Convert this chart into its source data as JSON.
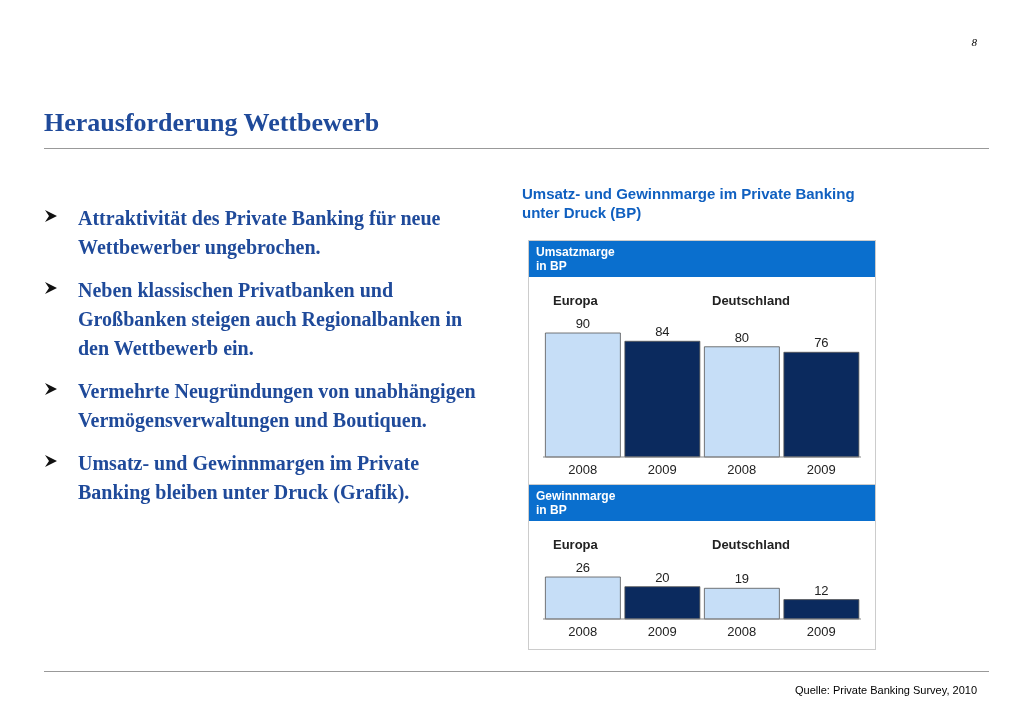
{
  "chart_data": [
    {
      "type": "other",
      "title": "Herausforderung Wettbewerb",
      "annotations": [
        "Attraktivität des Private Banking für neue Wettbewerber ungebrochen.",
        "Neben klassischen Privatbanken und Großbanken steigen auch Regionalbanken in den Wettbewerb ein.",
        "Vermehrte Neugründungen von unabhängigen Vermögensverwaltungen und Boutiquen.",
        "Umsatz- und Gewinnmargen im Private Banking bleiben unter Druck (Grafik).",
        "Umsatz- und Gewinnmarge im Private Banking unter Druck (BP)",
        "Quelle: Private Banking Survey, 2010",
        "8"
      ]
    },
    {
      "type": "bar",
      "title": "Umsatzmarge",
      "subtitle": "in BP",
      "categories": [
        "2008",
        "2009",
        "2008",
        "2009"
      ],
      "values": [
        90,
        84,
        80,
        76
      ],
      "colors": [
        "#c6def7",
        "#0b2a5e",
        "#c6def7",
        "#0b2a5e"
      ],
      "data_labels": true,
      "annotations": [
        "Europa",
        "Deutschland"
      ]
    },
    {
      "type": "bar",
      "title": "Gewinnmarge",
      "subtitle": "in BP",
      "categories": [
        "2008",
        "2009",
        "2008",
        "2009"
      ],
      "values": [
        26,
        20,
        19,
        12
      ],
      "colors": [
        "#c6def7",
        "#0b2a5e",
        "#c6def7",
        "#0b2a5e"
      ],
      "data_labels": true,
      "annotations": [
        "Europa",
        "Deutschland"
      ]
    }
  ]
}
